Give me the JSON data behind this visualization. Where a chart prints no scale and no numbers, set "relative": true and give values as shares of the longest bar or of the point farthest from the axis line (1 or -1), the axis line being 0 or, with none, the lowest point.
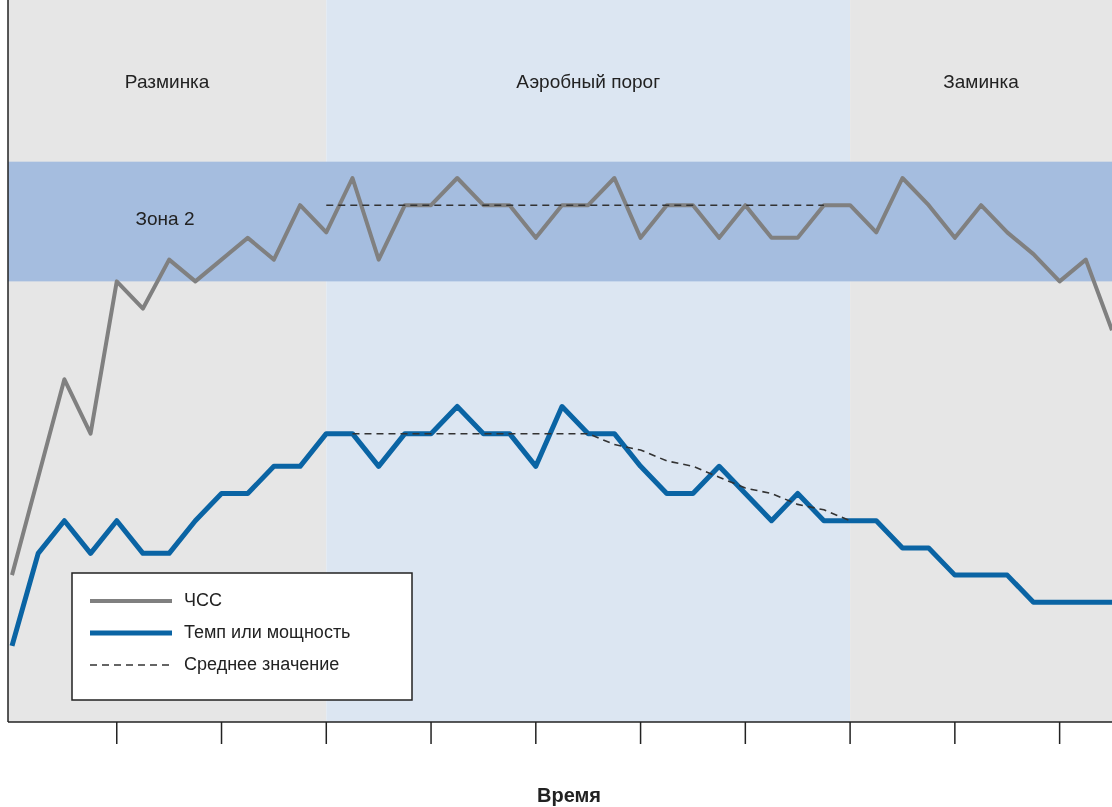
{
  "chart_data": {
    "type": "line",
    "relative": true,
    "xlabel": "Время",
    "categories": [
      null,
      null,
      null,
      null,
      null,
      null,
      null,
      null,
      null,
      null,
      null,
      null,
      null,
      null,
      null,
      null,
      null,
      null,
      null,
      null,
      null,
      null,
      null,
      null,
      null,
      null,
      null,
      null,
      null,
      null,
      null,
      null,
      null,
      null,
      null,
      null,
      null,
      null,
      null,
      null,
      null,
      null,
      null
    ],
    "grid": false,
    "legend": "bottom left",
    "line_style": "solid",
    "annotations": [
      "Разминка",
      "Аэробный порог",
      "Заминка"
    ],
    "bands": [
      {
        "axis": "y",
        "from": 0.81,
        "to": 1.03,
        "label": "Зона 2",
        "color": "#a5bddf"
      }
    ],
    "series": [
      {
        "name": "ЧСС",
        "color": "#808080",
        "values": [
          0.27,
          0.45,
          0.63,
          0.53,
          0.81,
          0.76,
          0.85,
          0.81,
          0.85,
          0.89,
          0.85,
          0.95,
          0.9,
          1,
          0.85,
          0.95,
          0.95,
          1,
          0.95,
          0.95,
          0.89,
          0.95,
          0.95,
          1,
          0.89,
          0.95,
          0.95,
          0.89,
          0.95,
          0.89,
          0.89,
          0.95,
          0.95,
          0.9,
          1,
          0.95,
          0.89,
          0.95,
          0.9,
          0.86,
          0.81,
          0.85,
          0.72
        ]
      },
      {
        "name": "Темп или мощность",
        "color": "#0a64a4",
        "values": [
          0.14,
          0.31,
          0.37,
          0.31,
          0.37,
          0.31,
          0.31,
          0.37,
          0.42,
          0.42,
          0.47,
          0.47,
          0.53,
          0.53,
          0.47,
          0.53,
          0.53,
          0.58,
          0.53,
          0.53,
          0.47,
          0.58,
          0.53,
          0.53,
          0.47,
          0.42,
          0.42,
          0.47,
          0.42,
          0.37,
          0.42,
          0.37,
          0.37,
          0.37,
          0.32,
          0.32,
          0.27,
          0.27,
          0.27,
          0.22,
          0.22,
          0.22,
          0.22
        ]
      },
      {
        "name": "Среднее значение",
        "color": "#333333",
        "line_style": "dashed",
        "values": [
          null,
          null,
          null,
          null,
          null,
          null,
          null,
          null,
          null,
          null,
          null,
          null,
          0.95,
          0.95,
          0.95,
          0.95,
          0.95,
          0.95,
          0.95,
          0.95,
          0.95,
          0.95,
          0.95,
          0.95,
          0.95,
          0.95,
          0.95,
          0.95,
          0.95,
          0.95,
          0.95,
          0.95,
          null,
          null,
          null,
          null,
          null,
          null,
          null,
          null,
          null,
          null,
          null
        ]
      },
      {
        "color": "#333333",
        "line_style": "dashed",
        "values": [
          null,
          null,
          null,
          null,
          null,
          null,
          null,
          null,
          null,
          null,
          null,
          null,
          null,
          0.53,
          0.53,
          0.53,
          0.53,
          0.53,
          0.53,
          0.53,
          0.53,
          0.53,
          0.53,
          0.51,
          0.5,
          0.48,
          0.47,
          0.45,
          0.43,
          0.42,
          0.4,
          0.39,
          0.37,
          null,
          null,
          null,
          null,
          null,
          null,
          null,
          null,
          null,
          null
        ]
      }
    ]
  }
}
